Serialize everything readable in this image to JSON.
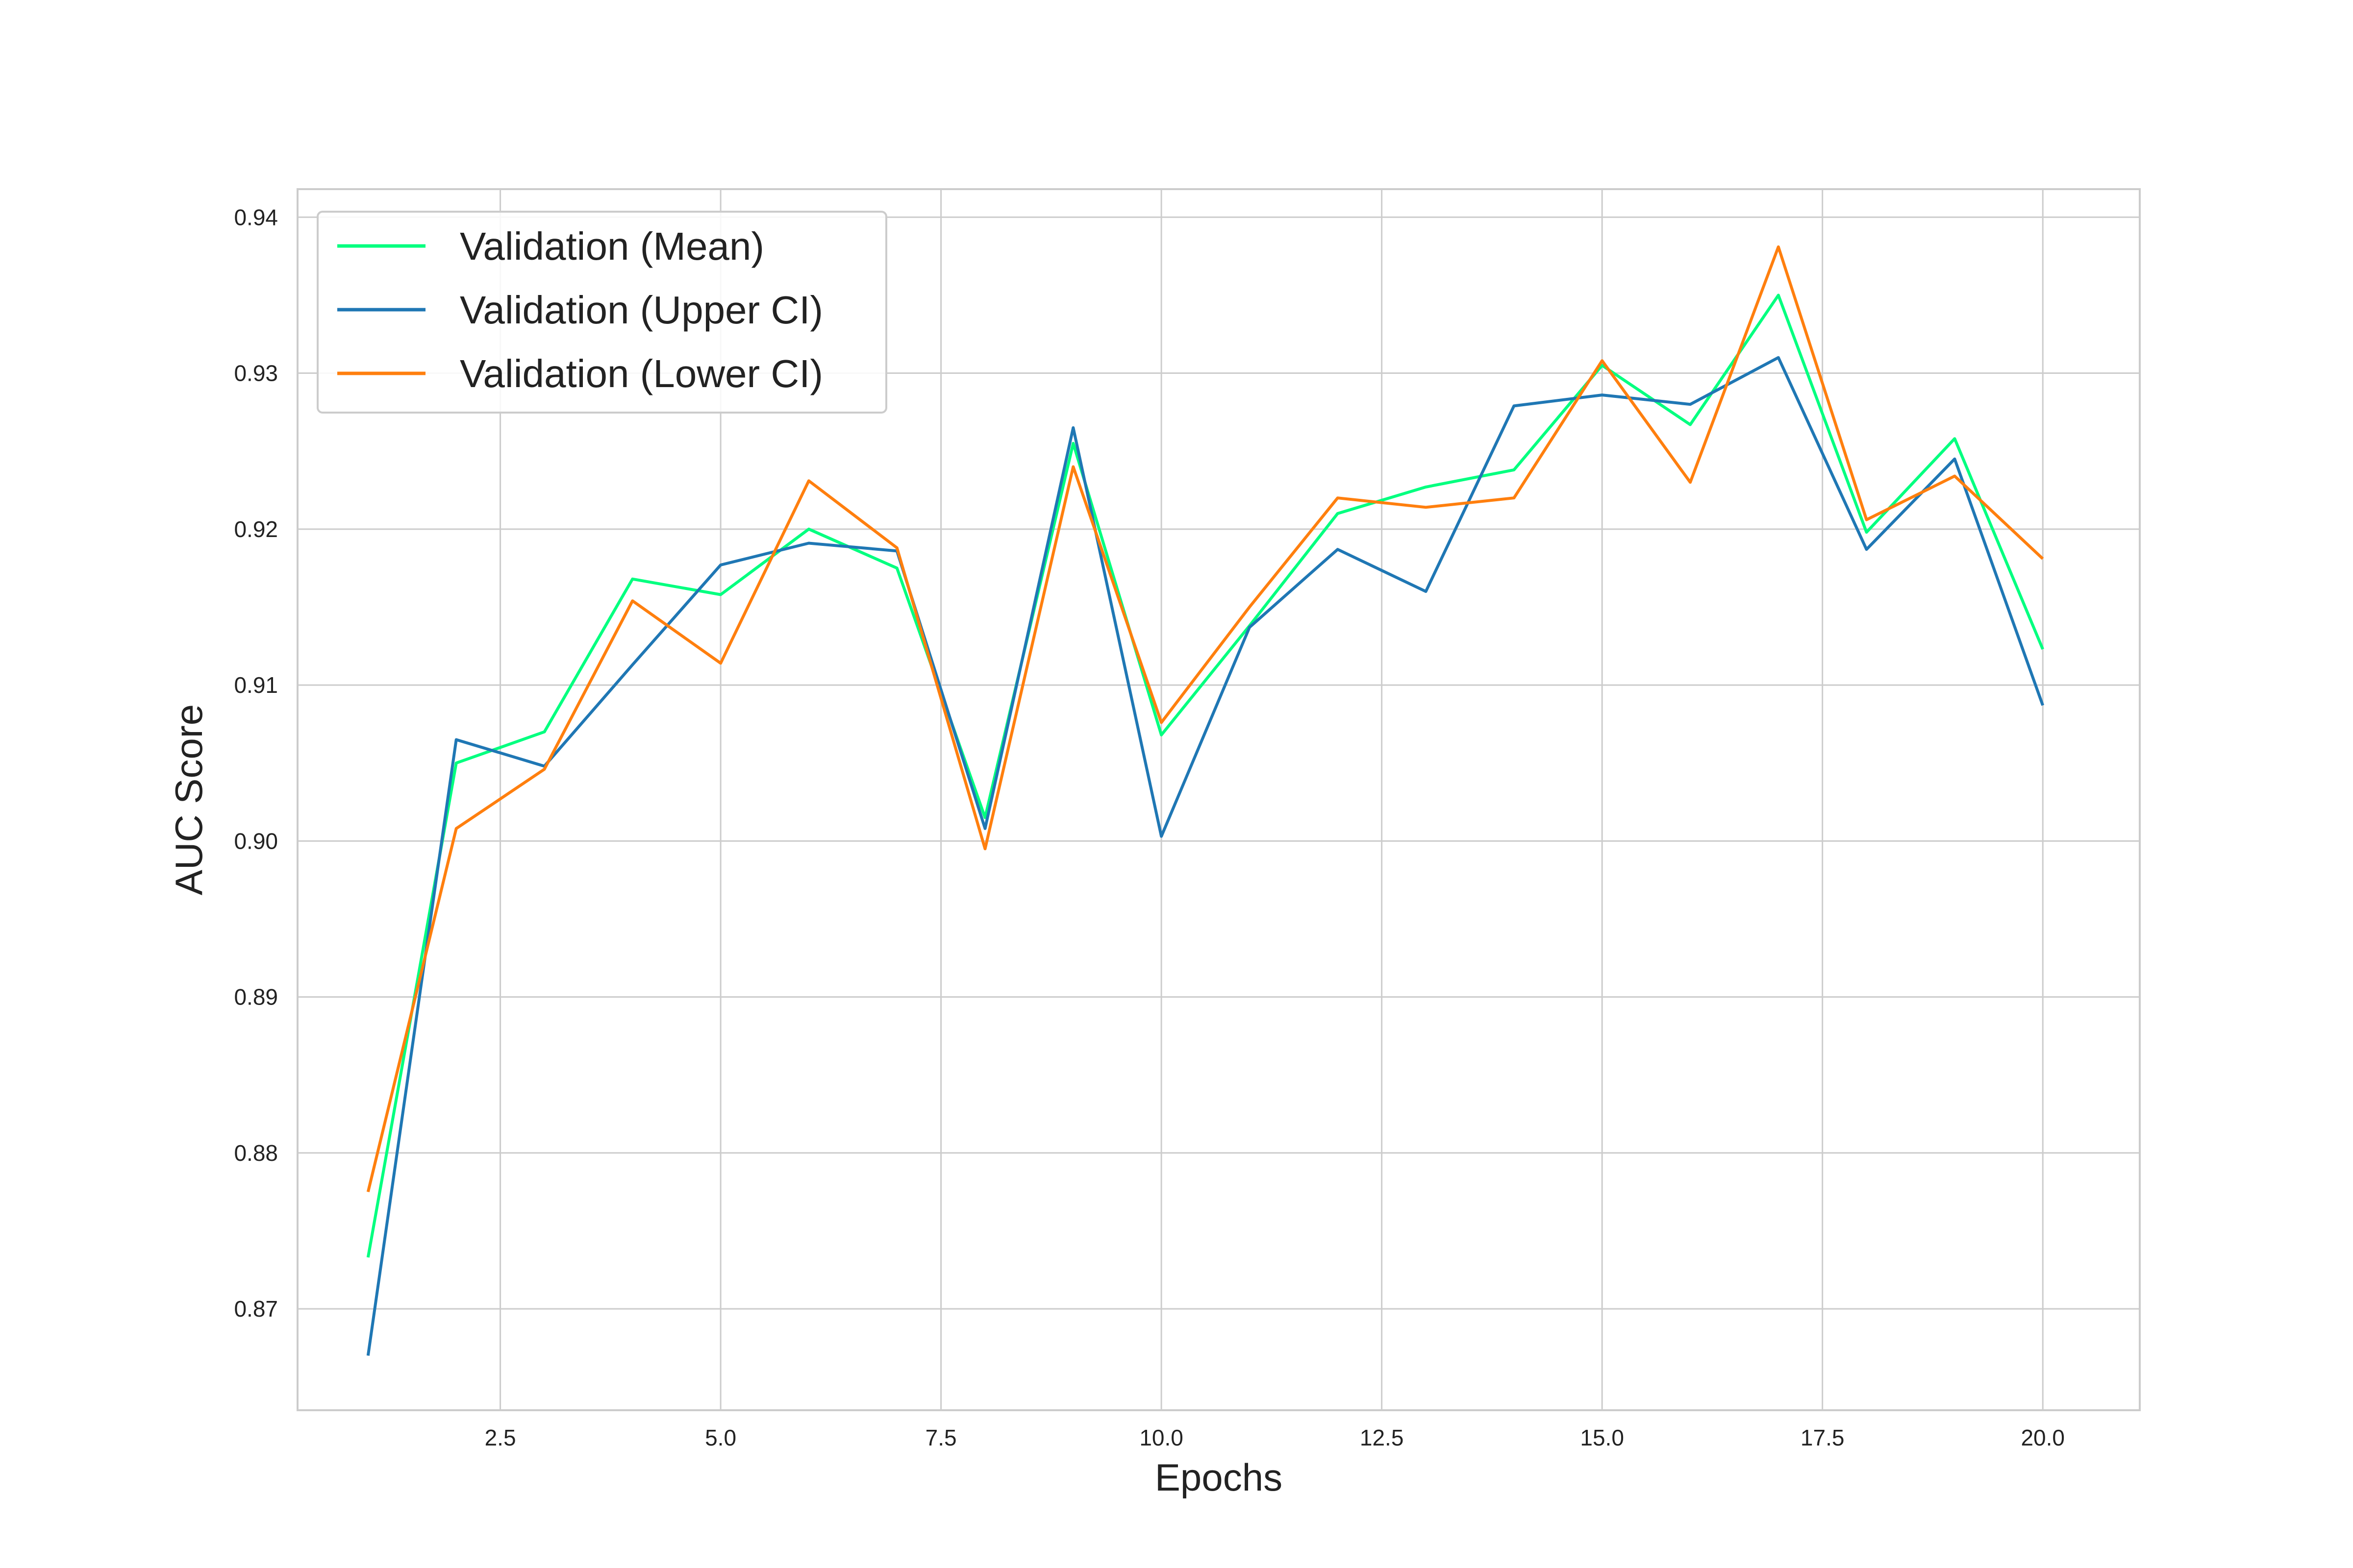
{
  "chart_data": {
    "type": "line",
    "xlabel": "Epochs",
    "ylabel": "AUC Score",
    "xlim": [
      0.2,
      21.1
    ],
    "ylim": [
      0.8635,
      0.9418
    ],
    "xticks": [
      2.5,
      5.0,
      7.5,
      10.0,
      12.5,
      15.0,
      17.5,
      20.0
    ],
    "xtick_labels": [
      "2.5",
      "5.0",
      "7.5",
      "10.0",
      "12.5",
      "15.0",
      "17.5",
      "20.0"
    ],
    "yticks": [
      0.87,
      0.88,
      0.89,
      0.9,
      0.91,
      0.92,
      0.93,
      0.94
    ],
    "ytick_labels": [
      "0.87",
      "0.88",
      "0.89",
      "0.90",
      "0.91",
      "0.92",
      "0.93",
      "0.94"
    ],
    "grid": true,
    "legend_position": "top-left",
    "x": [
      1,
      2,
      3,
      4,
      5,
      6,
      7,
      8,
      9,
      10,
      11,
      12,
      13,
      14,
      15,
      16,
      17,
      18,
      19,
      20
    ],
    "series": [
      {
        "name": "Validation (Mean)",
        "color": "#00ff7f",
        "values": [
          0.8733,
          0.905,
          0.907,
          0.9168,
          0.9158,
          0.92,
          0.9175,
          0.9015,
          0.9255,
          0.9068,
          0.9138,
          0.921,
          0.9227,
          0.9238,
          0.9305,
          0.9267,
          0.935,
          0.9198,
          0.9258,
          0.9123
        ]
      },
      {
        "name": "Validation (Upper CI)",
        "color": "#1f77b4",
        "values": [
          0.867,
          0.9065,
          0.9048,
          0.9113,
          0.9177,
          0.9191,
          0.9186,
          0.9008,
          0.9265,
          0.9003,
          0.9137,
          0.9187,
          0.916,
          0.9279,
          0.9286,
          0.928,
          0.931,
          0.9187,
          0.9245,
          0.9087
        ]
      },
      {
        "name": "Validation (Lower CI)",
        "color": "#ff7f0e",
        "values": [
          0.8775,
          0.9008,
          0.9046,
          0.9154,
          0.9114,
          0.9231,
          0.9188,
          0.8995,
          0.924,
          0.9076,
          0.915,
          0.922,
          0.9214,
          0.922,
          0.9308,
          0.923,
          0.9381,
          0.9206,
          0.9234,
          0.9181
        ]
      }
    ]
  }
}
